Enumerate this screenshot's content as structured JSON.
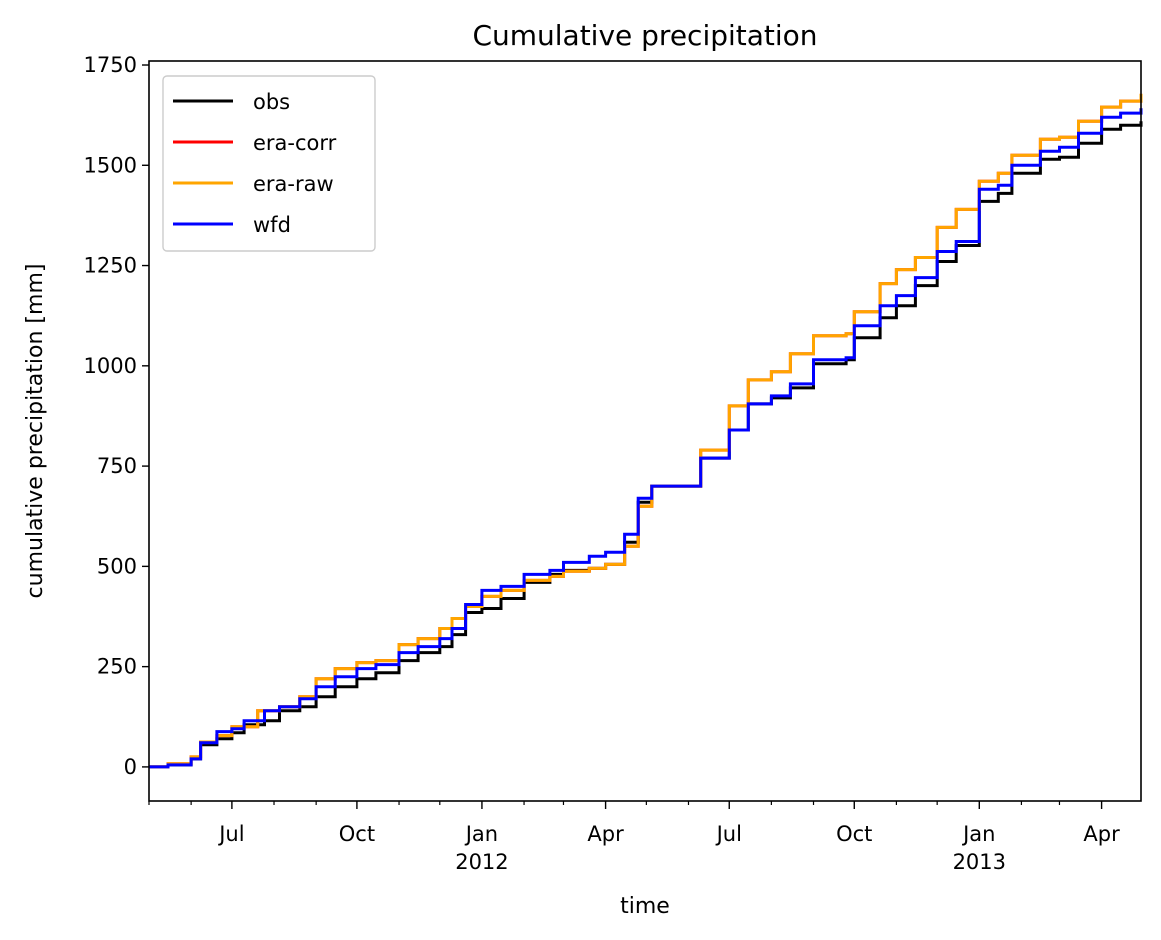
{
  "chart_data": {
    "type": "line",
    "title": "Cumulative precipitation",
    "xlabel": "time",
    "ylabel": "cumulative precipitation [mm]",
    "xlim": [
      "2011-05-01",
      "2013-04-30"
    ],
    "ylim": [
      -85,
      1760
    ],
    "yticks": [
      0,
      250,
      500,
      750,
      1000,
      1250,
      1500,
      1750
    ],
    "xticks_major": [
      {
        "date": "2011-07-01",
        "label": "Jul",
        "sublabel": ""
      },
      {
        "date": "2011-10-01",
        "label": "Oct",
        "sublabel": ""
      },
      {
        "date": "2012-01-01",
        "label": "Jan",
        "sublabel": "2012"
      },
      {
        "date": "2012-04-01",
        "label": "Apr",
        "sublabel": ""
      },
      {
        "date": "2012-07-01",
        "label": "Jul",
        "sublabel": ""
      },
      {
        "date": "2012-10-01",
        "label": "Oct",
        "sublabel": ""
      },
      {
        "date": "2013-01-01",
        "label": "Jan",
        "sublabel": "2013"
      },
      {
        "date": "2013-04-01",
        "label": "Apr",
        "sublabel": ""
      }
    ],
    "xticks_minor": [
      "2011-05-01",
      "2011-06-01",
      "2011-08-01",
      "2011-09-01",
      "2011-11-01",
      "2011-12-01",
      "2012-02-01",
      "2012-03-01",
      "2012-05-01",
      "2012-06-01",
      "2012-08-01",
      "2012-09-01",
      "2012-11-01",
      "2012-12-01",
      "2013-02-01",
      "2013-03-01"
    ],
    "grid": false,
    "legend": "upper-left",
    "series": [
      {
        "name": "obs",
        "color": "#000000",
        "points": [
          [
            "2011-05-01",
            0
          ],
          [
            "2011-05-15",
            5
          ],
          [
            "2011-06-01",
            20
          ],
          [
            "2011-06-08",
            55
          ],
          [
            "2011-06-20",
            70
          ],
          [
            "2011-07-01",
            85
          ],
          [
            "2011-07-10",
            105
          ],
          [
            "2011-07-25",
            115
          ],
          [
            "2011-08-05",
            140
          ],
          [
            "2011-08-20",
            150
          ],
          [
            "2011-09-01",
            175
          ],
          [
            "2011-09-15",
            200
          ],
          [
            "2011-10-01",
            220
          ],
          [
            "2011-10-15",
            235
          ],
          [
            "2011-11-01",
            265
          ],
          [
            "2011-11-15",
            285
          ],
          [
            "2011-12-01",
            300
          ],
          [
            "2011-12-10",
            330
          ],
          [
            "2011-12-20",
            385
          ],
          [
            "2012-01-01",
            395
          ],
          [
            "2012-01-15",
            420
          ],
          [
            "2012-02-01",
            460
          ],
          [
            "2012-02-20",
            480
          ],
          [
            "2012-03-01",
            490
          ],
          [
            "2012-03-20",
            495
          ],
          [
            "2012-04-01",
            505
          ],
          [
            "2012-04-15",
            560
          ],
          [
            "2012-04-25",
            660
          ],
          [
            "2012-05-05",
            700
          ],
          [
            "2012-05-25",
            700
          ],
          [
            "2012-06-10",
            770
          ],
          [
            "2012-07-01",
            840
          ],
          [
            "2012-07-15",
            905
          ],
          [
            "2012-08-01",
            920
          ],
          [
            "2012-08-15",
            945
          ],
          [
            "2012-09-01",
            1005
          ],
          [
            "2012-09-25",
            1015
          ],
          [
            "2012-10-01",
            1070
          ],
          [
            "2012-10-20",
            1120
          ],
          [
            "2012-11-01",
            1150
          ],
          [
            "2012-11-15",
            1200
          ],
          [
            "2012-12-01",
            1260
          ],
          [
            "2012-12-15",
            1300
          ],
          [
            "2013-01-01",
            1410
          ],
          [
            "2013-01-15",
            1430
          ],
          [
            "2013-01-25",
            1480
          ],
          [
            "2013-02-15",
            1515
          ],
          [
            "2013-03-01",
            1520
          ],
          [
            "2013-03-15",
            1555
          ],
          [
            "2013-04-01",
            1590
          ],
          [
            "2013-04-15",
            1600
          ],
          [
            "2013-04-30",
            1610
          ]
        ]
      },
      {
        "name": "era-corr",
        "color": "#ff0000",
        "points": [
          [
            "2011-05-01",
            0
          ],
          [
            "2011-05-15",
            8
          ],
          [
            "2011-06-01",
            25
          ],
          [
            "2011-06-08",
            62
          ],
          [
            "2011-06-20",
            78
          ],
          [
            "2011-07-01",
            100
          ],
          [
            "2011-07-20",
            140
          ],
          [
            "2011-08-05",
            150
          ],
          [
            "2011-08-20",
            175
          ],
          [
            "2011-09-01",
            220
          ],
          [
            "2011-09-15",
            245
          ],
          [
            "2011-10-01",
            260
          ],
          [
            "2011-10-15",
            265
          ],
          [
            "2011-11-01",
            305
          ],
          [
            "2011-11-15",
            320
          ],
          [
            "2011-12-01",
            345
          ],
          [
            "2011-12-10",
            370
          ],
          [
            "2011-12-20",
            400
          ],
          [
            "2012-01-01",
            425
          ],
          [
            "2012-01-15",
            440
          ],
          [
            "2012-02-01",
            465
          ],
          [
            "2012-02-20",
            475
          ],
          [
            "2012-03-01",
            488
          ],
          [
            "2012-03-20",
            495
          ],
          [
            "2012-04-01",
            505
          ],
          [
            "2012-04-15",
            550
          ],
          [
            "2012-04-25",
            650
          ],
          [
            "2012-05-05",
            700
          ],
          [
            "2012-05-25",
            700
          ],
          [
            "2012-06-10",
            790
          ],
          [
            "2012-07-01",
            900
          ],
          [
            "2012-07-15",
            965
          ],
          [
            "2012-08-01",
            985
          ],
          [
            "2012-08-15",
            1030
          ],
          [
            "2012-09-01",
            1075
          ],
          [
            "2012-09-25",
            1080
          ],
          [
            "2012-10-01",
            1135
          ],
          [
            "2012-10-20",
            1205
          ],
          [
            "2012-11-01",
            1240
          ],
          [
            "2012-11-15",
            1270
          ],
          [
            "2012-12-01",
            1345
          ],
          [
            "2012-12-15",
            1390
          ],
          [
            "2013-01-01",
            1460
          ],
          [
            "2013-01-15",
            1480
          ],
          [
            "2013-01-25",
            1525
          ],
          [
            "2013-02-15",
            1565
          ],
          [
            "2013-03-01",
            1570
          ],
          [
            "2013-03-15",
            1610
          ],
          [
            "2013-04-01",
            1645
          ],
          [
            "2013-04-15",
            1660
          ],
          [
            "2013-04-30",
            1678
          ]
        ]
      },
      {
        "name": "era-raw",
        "color": "#ffa500",
        "points": [
          [
            "2011-05-01",
            0
          ],
          [
            "2011-05-15",
            8
          ],
          [
            "2011-06-01",
            25
          ],
          [
            "2011-06-08",
            62
          ],
          [
            "2011-06-20",
            78
          ],
          [
            "2011-07-01",
            100
          ],
          [
            "2011-07-20",
            140
          ],
          [
            "2011-08-05",
            150
          ],
          [
            "2011-08-20",
            175
          ],
          [
            "2011-09-01",
            220
          ],
          [
            "2011-09-15",
            245
          ],
          [
            "2011-10-01",
            260
          ],
          [
            "2011-10-15",
            265
          ],
          [
            "2011-11-01",
            305
          ],
          [
            "2011-11-15",
            320
          ],
          [
            "2011-12-01",
            345
          ],
          [
            "2011-12-10",
            370
          ],
          [
            "2011-12-20",
            400
          ],
          [
            "2012-01-01",
            425
          ],
          [
            "2012-01-15",
            440
          ],
          [
            "2012-02-01",
            465
          ],
          [
            "2012-02-20",
            475
          ],
          [
            "2012-03-01",
            488
          ],
          [
            "2012-03-20",
            495
          ],
          [
            "2012-04-01",
            505
          ],
          [
            "2012-04-15",
            550
          ],
          [
            "2012-04-25",
            650
          ],
          [
            "2012-05-05",
            700
          ],
          [
            "2012-05-25",
            700
          ],
          [
            "2012-06-10",
            790
          ],
          [
            "2012-07-01",
            900
          ],
          [
            "2012-07-15",
            965
          ],
          [
            "2012-08-01",
            985
          ],
          [
            "2012-08-15",
            1030
          ],
          [
            "2012-09-01",
            1075
          ],
          [
            "2012-09-25",
            1080
          ],
          [
            "2012-10-01",
            1135
          ],
          [
            "2012-10-20",
            1205
          ],
          [
            "2012-11-01",
            1240
          ],
          [
            "2012-11-15",
            1270
          ],
          [
            "2012-12-01",
            1345
          ],
          [
            "2012-12-15",
            1390
          ],
          [
            "2013-01-01",
            1460
          ],
          [
            "2013-01-15",
            1480
          ],
          [
            "2013-01-25",
            1525
          ],
          [
            "2013-02-15",
            1565
          ],
          [
            "2013-03-01",
            1570
          ],
          [
            "2013-03-15",
            1610
          ],
          [
            "2013-04-01",
            1645
          ],
          [
            "2013-04-15",
            1660
          ],
          [
            "2013-04-30",
            1678
          ]
        ]
      },
      {
        "name": "wfd",
        "color": "#0000ff",
        "points": [
          [
            "2011-05-01",
            0
          ],
          [
            "2011-05-15",
            5
          ],
          [
            "2011-06-01",
            20
          ],
          [
            "2011-06-08",
            60
          ],
          [
            "2011-06-20",
            88
          ],
          [
            "2011-07-01",
            95
          ],
          [
            "2011-07-10",
            115
          ],
          [
            "2011-07-25",
            140
          ],
          [
            "2011-08-05",
            150
          ],
          [
            "2011-08-20",
            170
          ],
          [
            "2011-09-01",
            200
          ],
          [
            "2011-09-15",
            225
          ],
          [
            "2011-10-01",
            245
          ],
          [
            "2011-10-15",
            255
          ],
          [
            "2011-11-01",
            285
          ],
          [
            "2011-11-15",
            300
          ],
          [
            "2011-12-01",
            320
          ],
          [
            "2011-12-10",
            345
          ],
          [
            "2011-12-20",
            405
          ],
          [
            "2012-01-01",
            440
          ],
          [
            "2012-01-15",
            450
          ],
          [
            "2012-02-01",
            480
          ],
          [
            "2012-02-20",
            490
          ],
          [
            "2012-03-01",
            510
          ],
          [
            "2012-03-20",
            525
          ],
          [
            "2012-04-01",
            535
          ],
          [
            "2012-04-15",
            580
          ],
          [
            "2012-04-25",
            670
          ],
          [
            "2012-05-05",
            700
          ],
          [
            "2012-05-25",
            700
          ],
          [
            "2012-06-10",
            770
          ],
          [
            "2012-07-01",
            840
          ],
          [
            "2012-07-15",
            905
          ],
          [
            "2012-08-01",
            925
          ],
          [
            "2012-08-15",
            955
          ],
          [
            "2012-09-01",
            1015
          ],
          [
            "2012-09-25",
            1020
          ],
          [
            "2012-10-01",
            1100
          ],
          [
            "2012-10-20",
            1150
          ],
          [
            "2012-11-01",
            1175
          ],
          [
            "2012-11-15",
            1220
          ],
          [
            "2012-12-01",
            1285
          ],
          [
            "2012-12-15",
            1310
          ],
          [
            "2013-01-01",
            1440
          ],
          [
            "2013-01-15",
            1450
          ],
          [
            "2013-01-25",
            1500
          ],
          [
            "2013-02-15",
            1535
          ],
          [
            "2013-03-01",
            1545
          ],
          [
            "2013-03-15",
            1580
          ],
          [
            "2013-04-01",
            1620
          ],
          [
            "2013-04-15",
            1630
          ],
          [
            "2013-04-30",
            1642
          ]
        ]
      }
    ]
  }
}
